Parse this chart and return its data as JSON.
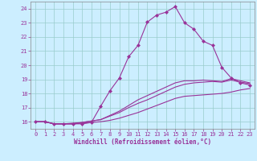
{
  "xlabel": "Windchill (Refroidissement éolien,°C)",
  "bg_color": "#cceeff",
  "line_color": "#993399",
  "grid_color": "#99cccc",
  "xlim": [
    -0.5,
    23.5
  ],
  "ylim": [
    15.5,
    24.5
  ],
  "yticks": [
    16,
    17,
    18,
    19,
    20,
    21,
    22,
    23,
    24
  ],
  "xticks": [
    0,
    1,
    2,
    3,
    4,
    5,
    6,
    7,
    8,
    9,
    10,
    11,
    12,
    13,
    14,
    15,
    16,
    17,
    18,
    19,
    20,
    21,
    22,
    23
  ],
  "line1_x": [
    0,
    1,
    2,
    3,
    4,
    5,
    6,
    7,
    8,
    9,
    10,
    11,
    12,
    13,
    14,
    15,
    16,
    17,
    18,
    19,
    20,
    21,
    22,
    23
  ],
  "line1_y": [
    16.0,
    16.0,
    15.85,
    15.85,
    15.85,
    15.85,
    15.95,
    17.1,
    18.2,
    19.1,
    20.6,
    21.4,
    23.05,
    23.55,
    23.75,
    24.15,
    23.0,
    22.55,
    21.7,
    21.4,
    19.85,
    19.1,
    18.75,
    18.6
  ],
  "line2_x": [
    0,
    1,
    2,
    3,
    4,
    5,
    6,
    7,
    8,
    9,
    10,
    11,
    12,
    13,
    14,
    15,
    16,
    17,
    18,
    19,
    20,
    21,
    22,
    23
  ],
  "line2_y": [
    16.0,
    16.0,
    15.85,
    15.85,
    15.9,
    15.95,
    16.05,
    16.15,
    16.45,
    16.75,
    17.15,
    17.55,
    17.85,
    18.15,
    18.45,
    18.75,
    18.9,
    18.9,
    18.95,
    18.9,
    18.85,
    19.05,
    18.9,
    18.75
  ],
  "line3_x": [
    0,
    1,
    2,
    3,
    4,
    5,
    6,
    7,
    8,
    9,
    10,
    11,
    12,
    13,
    14,
    15,
    16,
    17,
    18,
    19,
    20,
    21,
    22,
    23
  ],
  "line3_y": [
    16.0,
    16.0,
    15.85,
    15.85,
    15.85,
    15.9,
    15.95,
    16.0,
    16.1,
    16.25,
    16.45,
    16.65,
    16.9,
    17.15,
    17.4,
    17.65,
    17.8,
    17.85,
    17.9,
    17.95,
    18.0,
    18.1,
    18.25,
    18.35
  ],
  "line4_x": [
    0,
    1,
    2,
    3,
    4,
    5,
    6,
    7,
    8,
    9,
    10,
    11,
    12,
    13,
    14,
    15,
    16,
    17,
    18,
    19,
    20,
    21,
    22,
    23
  ],
  "line4_y": [
    16.0,
    16.0,
    15.85,
    15.85,
    15.85,
    15.95,
    16.05,
    16.15,
    16.4,
    16.65,
    17.0,
    17.3,
    17.55,
    17.85,
    18.15,
    18.45,
    18.65,
    18.75,
    18.8,
    18.85,
    18.8,
    18.95,
    18.8,
    18.7
  ]
}
